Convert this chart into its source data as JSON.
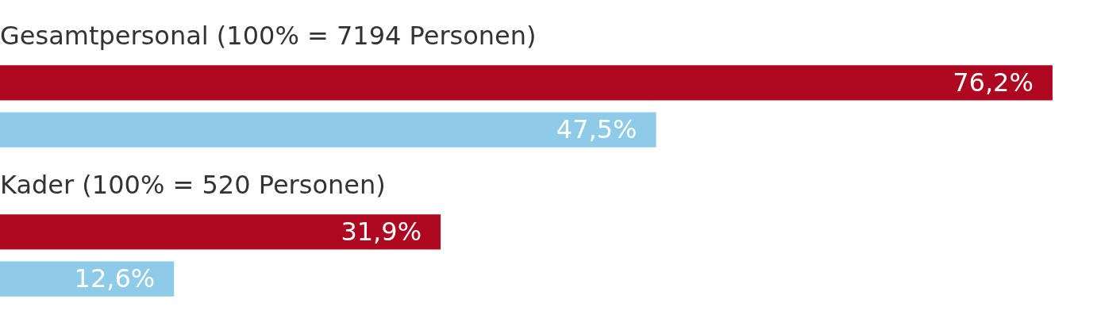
{
  "chart_data": {
    "type": "bar",
    "orientation": "horizontal",
    "categories": [
      "Gesamtpersonal (100% = 7194 Personen)",
      "Kader (100% = 520 Personen)"
    ],
    "series": [
      {
        "color": "#ae0720",
        "values": [
          76.2,
          31.9
        ],
        "value_labels": [
          "76,2%",
          "31,9%"
        ]
      },
      {
        "color": "#8ecbe8",
        "values": [
          47.5,
          12.6
        ],
        "value_labels": [
          "47,5%",
          "12,6%"
        ]
      }
    ],
    "tick_labels": false,
    "legend": false
  }
}
